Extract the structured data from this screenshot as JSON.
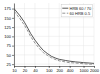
{
  "chart_data": {
    "type": "line",
    "x": [
      10,
      15,
      20,
      25,
      30,
      40,
      55,
      70,
      90,
      120,
      160,
      200,
      300,
      400,
      600,
      800,
      1000,
      1500,
      2000
    ],
    "series": [
      {
        "name": "HRB 60 / 70",
        "color": "#444444",
        "line_style": "solid",
        "values": [
          175,
          155,
          138,
          122,
          108,
          90,
          73,
          62,
          54,
          46,
          41,
          38,
          35,
          33,
          31,
          30,
          29,
          28,
          27
        ]
      },
      {
        "name": "60 HRB 0.5",
        "color": "#888888",
        "line_style": "dashed",
        "values": [
          168,
          147,
          130,
          114,
          100,
          82,
          66,
          56,
          49,
          42,
          37,
          34,
          31,
          29,
          28,
          27,
          26,
          25,
          25
        ]
      }
    ],
    "xlim": [
      10,
      2000
    ],
    "ylim": [
      20,
      190
    ],
    "xticks": [
      10,
      20,
      40,
      100,
      200,
      400,
      1000,
      2000
    ],
    "yticks": [
      25,
      50,
      75,
      100,
      125,
      150,
      175
    ],
    "log": "x",
    "grid": true,
    "legend": "upper right"
  }
}
